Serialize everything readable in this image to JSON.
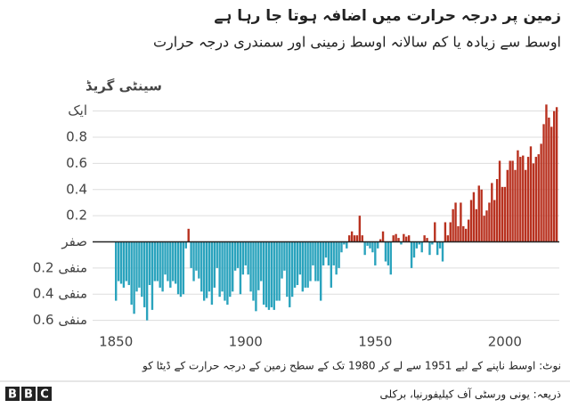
{
  "chart_data": {
    "type": "bar",
    "title": "زمین پر درجہ حرارت میں اضافہ ہوتا جا رہا ہے",
    "subtitle": "اوسط سے زیادہ یا کم سالانہ اوسط زمینی اور سمندری درجہ حرارت",
    "y_label": "سینٹی گریڈ",
    "note": "نوٹ: اوسط ناپنے کے لیے 1951 سے لے کر 1980 تک کے سطح زمین کے درجہ حرارت کے ڈیٹا کو",
    "source": "ذریعہ: یونی ورسٹی آف کیلیفورنیا، برکلی",
    "logo": "BBC",
    "x_start": 1850,
    "values": [
      -0.45,
      -0.3,
      -0.32,
      -0.35,
      -0.3,
      -0.33,
      -0.48,
      -0.55,
      -0.38,
      -0.35,
      -0.42,
      -0.5,
      -0.6,
      -0.33,
      -0.52,
      -0.3,
      -0.3,
      -0.35,
      -0.38,
      -0.25,
      -0.3,
      -0.35,
      -0.3,
      -0.32,
      -0.4,
      -0.42,
      -0.4,
      -0.05,
      0.1,
      -0.2,
      -0.3,
      -0.22,
      -0.28,
      -0.38,
      -0.45,
      -0.43,
      -0.38,
      -0.48,
      -0.35,
      -0.2,
      -0.42,
      -0.38,
      -0.45,
      -0.48,
      -0.42,
      -0.38,
      -0.22,
      -0.2,
      -0.4,
      -0.25,
      -0.18,
      -0.25,
      -0.38,
      -0.45,
      -0.53,
      -0.37,
      -0.3,
      -0.48,
      -0.5,
      -0.52,
      -0.5,
      -0.52,
      -0.45,
      -0.45,
      -0.28,
      -0.22,
      -0.42,
      -0.5,
      -0.42,
      -0.35,
      -0.33,
      -0.25,
      -0.38,
      -0.35,
      -0.35,
      -0.3,
      -0.18,
      -0.3,
      -0.3,
      -0.45,
      -0.18,
      -0.12,
      -0.18,
      -0.35,
      -0.18,
      -0.25,
      -0.2,
      -0.08,
      -0.02,
      -0.05,
      0.05,
      0.08,
      0.05,
      0.05,
      0.2,
      0.05,
      -0.1,
      -0.03,
      -0.05,
      -0.08,
      -0.18,
      -0.05,
      0.02,
      0.08,
      -0.15,
      -0.18,
      -0.25,
      0.05,
      0.06,
      0.03,
      -0.02,
      0.06,
      0.04,
      0.05,
      -0.2,
      -0.12,
      -0.05,
      -0.02,
      -0.08,
      0.05,
      0.03,
      -0.1,
      -0.02,
      0.15,
      -0.1,
      -0.05,
      -0.15,
      0.15,
      0.05,
      0.15,
      0.25,
      0.3,
      0.12,
      0.3,
      0.12,
      0.1,
      0.17,
      0.32,
      0.38,
      0.25,
      0.43,
      0.4,
      0.2,
      0.24,
      0.3,
      0.45,
      0.32,
      0.48,
      0.62,
      0.42,
      0.42,
      0.55,
      0.62,
      0.62,
      0.55,
      0.7,
      0.65,
      0.66,
      0.55,
      0.65,
      0.73,
      0.6,
      0.65,
      0.67,
      0.75,
      0.9,
      1.05,
      0.95,
      0.88,
      1.0,
      1.03
    ],
    "positive_color": "#b8311f",
    "negative_color": "#2aa3bd",
    "xlim": [
      1841,
      2021
    ],
    "xticks": [
      1850,
      1900,
      1950,
      2000
    ],
    "ylim": [
      -0.6,
      1.1
    ],
    "yticks": [
      {
        "value": 1,
        "label": "ایک"
      },
      0.8,
      0.6,
      0.4,
      0.2,
      {
        "value": 0,
        "label": "صفر"
      },
      {
        "value": -0.2,
        "label": "منفی 0.2"
      },
      {
        "value": -0.4,
        "label": "منفی 0.4"
      },
      {
        "value": -0.6,
        "label": "منفی 0.6"
      }
    ],
    "grid": true
  }
}
